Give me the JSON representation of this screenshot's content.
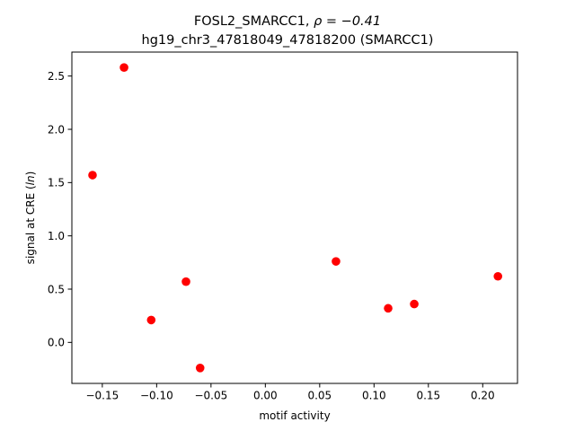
{
  "chart_data": {
    "type": "scatter",
    "title_line1_prefix": "FOSL2_SMARCC1, ",
    "title_line1_rho": "ρ = −0.41",
    "title_line2": "hg19_chr3_47818049_47818200 (SMARCC1)",
    "xlabel": "motif activity",
    "ylabel_prefix": "signal at CRE (",
    "ylabel_italic": "ln",
    "ylabel_suffix": ")",
    "xlim": [
      -0.178,
      0.232
    ],
    "ylim": [
      -0.385,
      2.725
    ],
    "xticks": [
      -0.15,
      -0.1,
      -0.05,
      0.0,
      0.05,
      0.1,
      0.15,
      0.2
    ],
    "xtick_labels": [
      "−0.15",
      "−0.10",
      "−0.05",
      "0.00",
      "0.05",
      "0.10",
      "0.15",
      "0.20"
    ],
    "yticks": [
      0.0,
      0.5,
      1.0,
      1.5,
      2.0,
      2.5
    ],
    "ytick_labels": [
      "0.0",
      "0.5",
      "1.0",
      "1.5",
      "2.0",
      "2.5"
    ],
    "grid": false,
    "marker_color": "#ff0000",
    "points": [
      {
        "x": -0.159,
        "y": 1.57
      },
      {
        "x": -0.13,
        "y": 2.58
      },
      {
        "x": -0.105,
        "y": 0.21
      },
      {
        "x": -0.073,
        "y": 0.57
      },
      {
        "x": -0.06,
        "y": -0.24
      },
      {
        "x": 0.065,
        "y": 0.76
      },
      {
        "x": 0.113,
        "y": 0.32
      },
      {
        "x": 0.137,
        "y": 0.36
      },
      {
        "x": 0.214,
        "y": 0.62
      }
    ]
  }
}
